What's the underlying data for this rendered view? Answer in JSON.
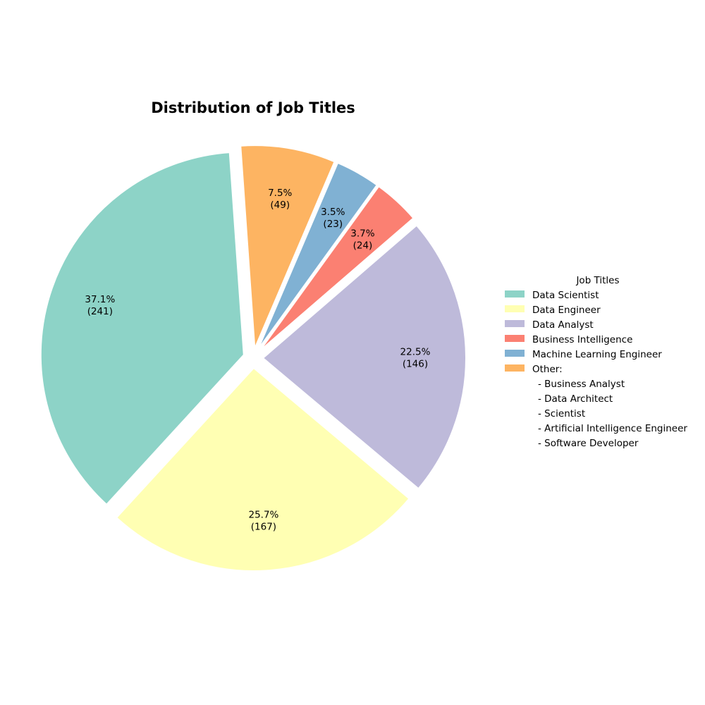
{
  "chart_data": {
    "type": "pie",
    "title": "Distribution of Job Titles",
    "slices": [
      {
        "label": "Data Scientist",
        "value": 241,
        "percent": "37.1%",
        "color": "#8dd3c7"
      },
      {
        "label": "Data Engineer",
        "value": 167,
        "percent": "25.7%",
        "color": "#ffffb3"
      },
      {
        "label": "Data Analyst",
        "value": 146,
        "percent": "22.5%",
        "color": "#bebada"
      },
      {
        "label": "Business Intelligence",
        "value": 24,
        "percent": "3.7%",
        "color": "#fb8072"
      },
      {
        "label": "Machine Learning Engineer",
        "value": 23,
        "percent": "3.5%",
        "color": "#80b1d3"
      },
      {
        "label": "Other",
        "value": 49,
        "percent": "7.5%",
        "color": "#fdb462"
      }
    ],
    "legend": {
      "title": "Job Titles",
      "placement": "right",
      "entries": [
        "Data Scientist",
        "Data Engineer",
        "Data Analyst",
        "Business Intelligence",
        "Machine Learning Engineer",
        "Other:"
      ],
      "other_items": [
        "- Business Analyst",
        "- Data Architect",
        "- Scientist",
        "- Artificial Intelligence Engineer",
        "- Software Developer"
      ]
    }
  }
}
